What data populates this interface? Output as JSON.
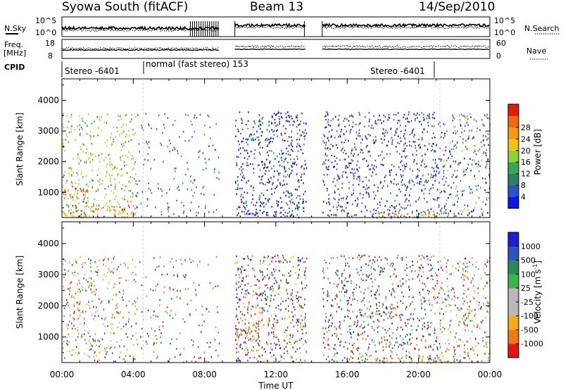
{
  "header": {
    "title": "Syowa South (fitACF)",
    "beam": "Beam 13",
    "date": "14/Sep/2010"
  },
  "strips": {
    "nsky_label": "N.Sky",
    "nsky_ticks": [
      "10^5",
      "10^0"
    ],
    "nsearch_label": "N.Search",
    "freq_label_1": "Freq.",
    "freq_label_2": "[MHz]",
    "freq_ticks": [
      "18",
      "8"
    ],
    "nave_ticks": [
      "60",
      "0"
    ],
    "nave_label": "Nave",
    "cpid_label": "CPID",
    "cpid_segments": [
      "Stereo -6401",
      "normal (fast stereo) 153",
      "Stereo -6401"
    ]
  },
  "colors": {
    "power": [
      "#0b16e8",
      "#2a55c8",
      "#2f8060",
      "#3aa84f",
      "#8ed23a",
      "#f0c21a",
      "#f59a18",
      "#ef6a14",
      "#e01b10"
    ],
    "velocity": [
      "#e21712",
      "#f07a16",
      "#f7aa19",
      "#b9b9b9",
      "#b9b9b9",
      "#3bb54a",
      "#2a8a5a",
      "#2b55c2",
      "#1b20c8"
    ]
  },
  "chart_data": [
    {
      "type": "heatmap",
      "panel": "power",
      "ylabel": "Slant Range [km]",
      "xlabel": "",
      "x_ticks": [
        "00:00",
        "04:00",
        "08:00",
        "12:00",
        "16:00",
        "20:00",
        "00:00"
      ],
      "y_ticks": [
        "1000",
        "2000",
        "3000",
        "4000"
      ],
      "xlim_hours": [
        0,
        24
      ],
      "ylim_km": [
        180,
        4700
      ],
      "colorbar_label": "Power [dB]",
      "colorbar_ticks": [
        "4",
        "8",
        "12",
        "16",
        "20",
        "24",
        "28"
      ],
      "scatter_regions": [
        {
          "t_start": 0.0,
          "t_end": 4.2,
          "r_start": 200,
          "r_end": 3600,
          "density": 0.35,
          "palette": [
            3,
            4,
            4,
            4,
            2,
            5
          ]
        },
        {
          "t_start": 0.0,
          "t_end": 1.5,
          "r_start": 800,
          "r_end": 1250,
          "density": 0.9,
          "palette": [
            8,
            7,
            6,
            5
          ]
        },
        {
          "t_start": 0.0,
          "t_end": 4.2,
          "r_start": 200,
          "r_end": 600,
          "density": 0.8,
          "palette": [
            5,
            6,
            7,
            8,
            4
          ]
        },
        {
          "t_start": 4.2,
          "t_end": 8.8,
          "r_start": 200,
          "r_end": 3600,
          "density": 0.15,
          "palette": [
            1,
            2,
            3,
            1
          ]
        },
        {
          "t_start": 9.7,
          "t_end": 13.7,
          "r_start": 200,
          "r_end": 3650,
          "density": 0.55,
          "palette": [
            0,
            0,
            1,
            0,
            2
          ]
        },
        {
          "t_start": 14.6,
          "t_end": 21.2,
          "r_start": 200,
          "r_end": 3650,
          "density": 0.45,
          "palette": [
            0,
            1,
            0,
            2,
            1
          ]
        },
        {
          "t_start": 21.2,
          "t_end": 24.0,
          "r_start": 200,
          "r_end": 3600,
          "density": 0.45,
          "palette": [
            1,
            2,
            3,
            0,
            4
          ]
        },
        {
          "t_start": 17.5,
          "t_end": 21.2,
          "r_start": 180,
          "r_end": 400,
          "density": 0.9,
          "palette": [
            8,
            7,
            6,
            4,
            3
          ]
        }
      ]
    },
    {
      "type": "heatmap",
      "panel": "velocity",
      "ylabel": "Slant Range [km]",
      "xlabel": "Time UT",
      "x_ticks": [
        "00:00",
        "04:00",
        "08:00",
        "12:00",
        "16:00",
        "20:00",
        "00:00"
      ],
      "y_ticks": [
        "1000",
        "2000",
        "3000",
        "4000"
      ],
      "xlim_hours": [
        0,
        24
      ],
      "ylim_km": [
        180,
        4700
      ],
      "colorbar_label": "Velocity [m s",
      "colorbar_label_sup": "-1",
      "colorbar_label_end": "]",
      "colorbar_ticks": [
        "-1000",
        "-500",
        "-100",
        "-25",
        "25",
        "100",
        "500",
        "1000"
      ],
      "scatter_regions": [
        {
          "t_start": 0.0,
          "t_end": 4.2,
          "r_start": 200,
          "r_end": 3600,
          "density": 0.35,
          "palette": [
            0,
            1,
            2,
            5,
            7,
            3
          ]
        },
        {
          "t_start": 4.2,
          "t_end": 8.8,
          "r_start": 200,
          "r_end": 3600,
          "density": 0.15,
          "palette": [
            0,
            1,
            5,
            7
          ]
        },
        {
          "t_start": 9.7,
          "t_end": 13.7,
          "r_start": 200,
          "r_end": 3650,
          "density": 0.55,
          "palette": [
            7,
            8,
            7,
            1,
            2,
            0
          ]
        },
        {
          "t_start": 9.7,
          "t_end": 11.0,
          "r_start": 900,
          "r_end": 1500,
          "density": 0.8,
          "palette": [
            1,
            2,
            0
          ]
        },
        {
          "t_start": 14.6,
          "t_end": 21.2,
          "r_start": 200,
          "r_end": 3650,
          "density": 0.45,
          "palette": [
            8,
            7,
            0,
            1,
            5
          ]
        },
        {
          "t_start": 21.2,
          "t_end": 24.0,
          "r_start": 200,
          "r_end": 3600,
          "density": 0.45,
          "palette": [
            0,
            1,
            5,
            7,
            3,
            2
          ]
        },
        {
          "t_start": 17.5,
          "t_end": 21.2,
          "r_start": 180,
          "r_end": 400,
          "density": 0.9,
          "palette": [
            2,
            1,
            3
          ]
        }
      ]
    }
  ]
}
